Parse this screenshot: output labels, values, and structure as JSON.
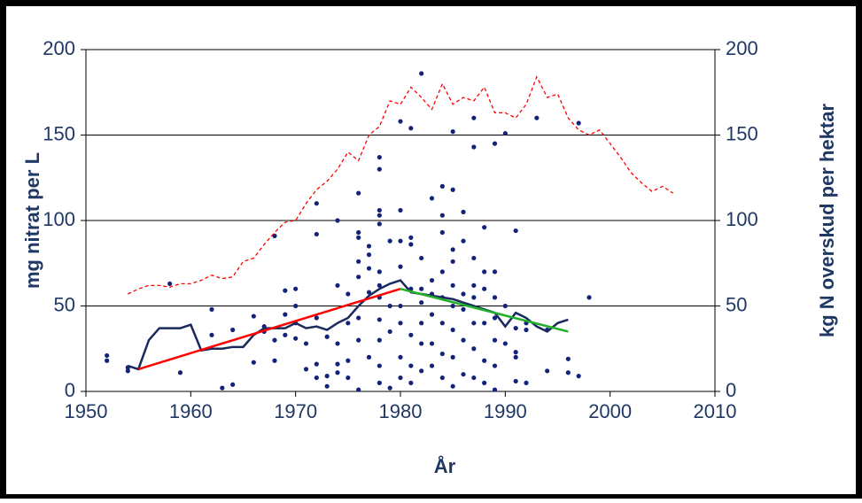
{
  "chart_data": {
    "type": "scatter",
    "xlabel": "År",
    "ylabel": "mg nitrat per L",
    "y2label": "kg N overskud per hektar",
    "xlim": [
      1950,
      2010
    ],
    "xticks": [
      1950,
      1960,
      1970,
      1980,
      1990,
      2000,
      2010
    ],
    "ylim": [
      0,
      200
    ],
    "yticks": [
      0,
      50,
      100,
      150,
      200
    ],
    "y2lim": [
      0,
      200
    ],
    "y2ticks": [
      0,
      50,
      100,
      150,
      200
    ],
    "grid": true,
    "series": [
      {
        "type": "scatter",
        "color": "#14237a",
        "x": [
          1952,
          1952,
          1954,
          1954,
          1958,
          1959,
          1962,
          1962,
          1963,
          1964,
          1964,
          1966,
          1966,
          1967,
          1967,
          1968,
          1968,
          1968,
          1969,
          1969,
          1969,
          1970,
          1970,
          1970,
          1970,
          1971,
          1971,
          1972,
          1972,
          1972,
          1972,
          1972,
          1973,
          1973,
          1973,
          1974,
          1974,
          1974,
          1974,
          1974,
          1975,
          1975,
          1975,
          1975,
          1976,
          1976,
          1976,
          1976,
          1976,
          1976,
          1976,
          1976,
          1977,
          1977,
          1977,
          1977,
          1977,
          1978,
          1978,
          1978,
          1978,
          1978,
          1978,
          1978,
          1978,
          1978,
          1978,
          1978,
          1978,
          1979,
          1979,
          1979,
          1979,
          1980,
          1980,
          1980,
          1980,
          1980,
          1980,
          1980,
          1980,
          1981,
          1981,
          1981,
          1981,
          1981,
          1981,
          1981,
          1982,
          1982,
          1982,
          1982,
          1982,
          1982,
          1982,
          1983,
          1983,
          1983,
          1983,
          1983,
          1983,
          1984,
          1984,
          1984,
          1984,
          1984,
          1984,
          1984,
          1984,
          1985,
          1985,
          1985,
          1985,
          1985,
          1985,
          1985,
          1985,
          1985,
          1986,
          1986,
          1986,
          1986,
          1986,
          1986,
          1987,
          1987,
          1987,
          1987,
          1987,
          1987,
          1987,
          1987,
          1988,
          1988,
          1988,
          1988,
          1988,
          1988,
          1989,
          1989,
          1989,
          1989,
          1989,
          1989,
          1989,
          1990,
          1990,
          1990,
          1991,
          1991,
          1991,
          1991,
          1991,
          1992,
          1992,
          1992,
          1993,
          1994,
          1994,
          1996,
          1996,
          1997,
          1997,
          1998
        ],
        "values": [
          21,
          18,
          12,
          14,
          63,
          11,
          48,
          33,
          2,
          4,
          36,
          44,
          17,
          35,
          38,
          91,
          30,
          18,
          59,
          45,
          33,
          60,
          50,
          40,
          31,
          28,
          13,
          110,
          92,
          43,
          16,
          8,
          32,
          9,
          3,
          100,
          62,
          28,
          16,
          11,
          57,
          40,
          18,
          8,
          116,
          93,
          90,
          76,
          67,
          43,
          30,
          1,
          85,
          80,
          72,
          58,
          20,
          137,
          130,
          106,
          103,
          98,
          70,
          62,
          55,
          42,
          30,
          15,
          5,
          88,
          50,
          35,
          2,
          158,
          106,
          88,
          73,
          50,
          40,
          20,
          8,
          154,
          90,
          86,
          60,
          33,
          15,
          5,
          186,
          78,
          60,
          52,
          40,
          28,
          12,
          113,
          65,
          57,
          45,
          28,
          15,
          120,
          103,
          93,
          70,
          55,
          40,
          22,
          8,
          152,
          118,
          83,
          76,
          62,
          50,
          36,
          20,
          3,
          105,
          88,
          57,
          48,
          30,
          10,
          160,
          143,
          78,
          62,
          55,
          40,
          25,
          8,
          96,
          70,
          60,
          40,
          18,
          5,
          145,
          70,
          55,
          43,
          30,
          15,
          1,
          151,
          50,
          28,
          94,
          37,
          23,
          20,
          6,
          40,
          36,
          5,
          160,
          12,
          36,
          19,
          11,
          157,
          9,
          55
        ]
      },
      {
        "type": "line",
        "color": "#1a2a5e",
        "x": [
          1954,
          1955,
          1956,
          1957,
          1958,
          1959,
          1960,
          1961,
          1962,
          1963,
          1964,
          1965,
          1966,
          1967,
          1968,
          1969,
          1970,
          1971,
          1972,
          1973,
          1974,
          1975,
          1976,
          1977,
          1978,
          1979,
          1980,
          1981,
          1982,
          1983,
          1984,
          1985,
          1986,
          1987,
          1988,
          1989,
          1990,
          1991,
          1992,
          1993,
          1994,
          1995,
          1996
        ],
        "values": [
          15,
          13,
          30,
          37,
          37,
          37,
          39,
          24,
          25,
          25,
          26,
          26,
          33,
          37,
          37,
          37,
          40,
          37,
          38,
          36,
          40,
          43,
          50,
          56,
          60,
          63,
          65,
          58,
          57,
          56,
          55,
          54,
          52,
          50,
          48,
          46,
          38,
          46,
          43,
          38,
          35,
          40,
          42
        ]
      },
      {
        "type": "line",
        "color": "#ff0000",
        "x": [
          1955,
          1980
        ],
        "values": [
          13,
          60
        ]
      },
      {
        "type": "line",
        "color": "#22b02a",
        "x": [
          1980,
          1996
        ],
        "values": [
          60,
          35
        ]
      },
      {
        "type": "dashed",
        "color": "#ff0000",
        "axis": "y2",
        "x": [
          1954,
          1955,
          1956,
          1957,
          1958,
          1959,
          1960,
          1961,
          1962,
          1963,
          1964,
          1965,
          1966,
          1967,
          1968,
          1969,
          1970,
          1971,
          1972,
          1973,
          1974,
          1975,
          1976,
          1977,
          1978,
          1979,
          1980,
          1981,
          1982,
          1983,
          1984,
          1985,
          1986,
          1987,
          1988,
          1989,
          1990,
          1991,
          1992,
          1993,
          1994,
          1995,
          1996,
          1997,
          1998,
          1999,
          2000,
          2001,
          2002,
          2003,
          2004,
          2005,
          2006
        ],
        "values": [
          57,
          60,
          62,
          62,
          61,
          63,
          63,
          65,
          68,
          66,
          67,
          76,
          78,
          86,
          93,
          99,
          100,
          110,
          118,
          123,
          130,
          140,
          135,
          150,
          155,
          170,
          168,
          178,
          172,
          165,
          180,
          168,
          172,
          170,
          178,
          163,
          163,
          160,
          168,
          184,
          172,
          174,
          160,
          153,
          150,
          153,
          145,
          137,
          128,
          122,
          117,
          120,
          116
        ]
      }
    ]
  }
}
